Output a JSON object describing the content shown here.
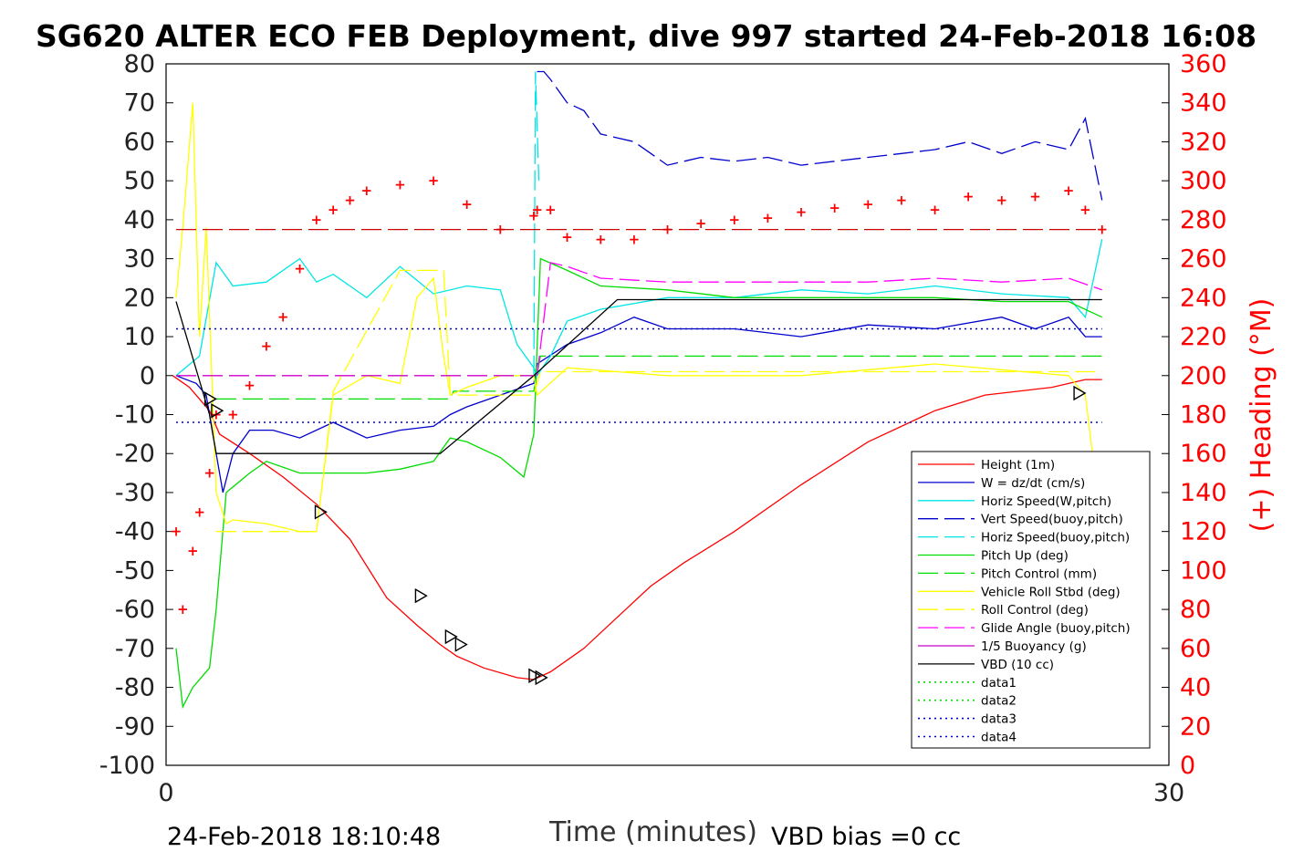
{
  "chart_data": {
    "type": "line",
    "title": "SG620 ALTER ECO FEB Deployment, dive 997 started 24-Feb-2018 16:08",
    "xlabel": "Time (minutes)",
    "ylabel_right": "(+) Heading (°M)",
    "xlim": [
      0,
      30
    ],
    "ylim": [
      -100,
      80
    ],
    "ylim_right": [
      0,
      360
    ],
    "x_ticks": [
      "0",
      "30"
    ],
    "y_ticks": [
      "80",
      "70",
      "60",
      "50",
      "40",
      "30",
      "20",
      "10",
      "0",
      "-10",
      "-20",
      "-30",
      "-40",
      "-50",
      "-60",
      "-70",
      "-80",
      "-90",
      "-100"
    ],
    "y_ticks_right": [
      "360",
      "340",
      "320",
      "300",
      "280",
      "260",
      "240",
      "220",
      "200",
      "180",
      "160",
      "140",
      "120",
      "100",
      "80",
      "60",
      "40",
      "20",
      "0"
    ],
    "footer_left": "24-Feb-2018 18:10:48",
    "footer_right": "VBD bias =0 cc",
    "colors": {
      "heading": "#ff0000",
      "right_axis": "#ff0000"
    },
    "legend": [
      {
        "label": "Height (1m)",
        "color": "#ff0000",
        "style": "solid"
      },
      {
        "label": "W = dz/dt (cm/s)",
        "color": "#0000cc",
        "style": "solid"
      },
      {
        "label": "Horiz Speed(W,pitch)",
        "color": "#00e5e5",
        "style": "solid"
      },
      {
        "label": "Vert Speed(buoy,pitch)",
        "color": "#0000cc",
        "style": "dashed"
      },
      {
        "label": "Horiz Speed(buoy,pitch)",
        "color": "#00e5e5",
        "style": "dashed"
      },
      {
        "label": "Pitch Up (deg)",
        "color": "#00dd00",
        "style": "solid"
      },
      {
        "label": "Pitch Control (mm)",
        "color": "#00dd00",
        "style": "dashed"
      },
      {
        "label": "Vehicle Roll Stbd (deg)",
        "color": "#ffff00",
        "style": "solid"
      },
      {
        "label": "Roll Control (deg)",
        "color": "#ffff00",
        "style": "dashed"
      },
      {
        "label": "Glide Angle (buoy,pitch)",
        "color": "#ff00ff",
        "style": "dashed"
      },
      {
        "label": "1/5 Buoyancy (g)",
        "color": "#cc00cc",
        "style": "solid"
      },
      {
        "label": "VBD (10 cc)",
        "color": "#000000",
        "style": "solid"
      },
      {
        "label": "data1",
        "color": "#00dd00",
        "style": "dotted"
      },
      {
        "label": "data2",
        "color": "#00dd00",
        "style": "dotted"
      },
      {
        "label": "data3",
        "color": "#0000cc",
        "style": "dotted"
      },
      {
        "label": "data4",
        "color": "#0000cc",
        "style": "dotted"
      }
    ],
    "series": [
      {
        "name": "Height (1m)",
        "axis": "left",
        "color": "#ff0000",
        "style": "solid",
        "x": [
          0.2,
          0.7,
          1.0,
          1.3,
          1.6,
          2.5,
          3.5,
          4.5,
          5.5,
          6.6,
          7.5,
          8.2,
          8.7,
          9.5,
          10.5,
          11.0,
          11.5,
          12.5,
          13.5,
          14.5,
          15.5,
          17.0,
          19.0,
          21.0,
          23.0,
          24.5,
          25.5,
          26.5,
          27.5,
          28.0
        ],
        "y": [
          0,
          -3,
          -6,
          -9,
          -15,
          -20,
          -26,
          -33,
          -42,
          -57,
          -64,
          -69,
          -72,
          -75,
          -77.5,
          -78,
          -76,
          -70,
          -62,
          -54,
          -48,
          -40,
          -28,
          -17,
          -9,
          -5,
          -4,
          -3,
          -1,
          -1
        ]
      },
      {
        "name": "W = dz/dt (cm/s)",
        "axis": "left",
        "color": "#0000cc",
        "style": "solid",
        "x": [
          0.3,
          0.9,
          1.2,
          1.5,
          1.7,
          2.0,
          2.5,
          3.2,
          4.0,
          5.0,
          6.0,
          7.0,
          8.0,
          8.5,
          9.0,
          10.0,
          11.0,
          11.1,
          12.0,
          13.0,
          14.0,
          15.0,
          17.0,
          19.0,
          21.0,
          23.0,
          25.0,
          26.0,
          27.0,
          27.5,
          28.0
        ],
        "y": [
          0,
          -2,
          -5,
          -20,
          -30,
          -20,
          -14,
          -14,
          -16,
          -12,
          -16,
          -14,
          -13,
          -10,
          -8,
          -5,
          -2,
          3,
          8,
          11,
          15,
          12,
          12,
          10,
          13,
          12,
          15,
          12,
          15,
          10,
          10
        ]
      },
      {
        "name": "Horiz Speed(W,pitch)",
        "axis": "left",
        "color": "#00e5e5",
        "style": "solid",
        "x": [
          0.3,
          1.0,
          1.5,
          2.0,
          3.0,
          4.0,
          4.5,
          5.0,
          6.0,
          7.0,
          8.0,
          9.0,
          10.0,
          10.5,
          11.0,
          11.1,
          11.5,
          12.0,
          13.0,
          15.0,
          17.0,
          19.0,
          21.0,
          23.0,
          25.0,
          27.0,
          27.5,
          28.0
        ],
        "y": [
          0,
          5,
          29,
          23,
          24,
          30,
          24,
          26,
          20,
          28,
          21,
          23,
          22,
          8,
          2,
          0,
          5,
          14,
          17,
          20,
          20,
          22,
          21,
          23,
          21,
          20,
          15,
          35
        ]
      },
      {
        "name": "Vert Speed(buoy,pitch)",
        "axis": "left",
        "color": "#0000cc",
        "style": "dashed",
        "x": [
          11.1,
          11.3,
          11.5,
          12.0,
          12.5,
          13.0,
          14.0,
          15.0,
          16.0,
          17.0,
          18.0,
          19.0,
          20.0,
          21.0,
          22.0,
          23.0,
          24.0,
          25.0,
          26.0,
          27.0,
          27.5,
          28.0
        ],
        "y": [
          78,
          78,
          76,
          70,
          68,
          62,
          60,
          54,
          56,
          55,
          56,
          54,
          55,
          56,
          57,
          58,
          60,
          57,
          60,
          58,
          66,
          45
        ]
      },
      {
        "name": "Horiz Speed(buoy,pitch)",
        "axis": "left",
        "color": "#00e5e5",
        "style": "dashed",
        "x": [
          11.0,
          11.05,
          11.15
        ],
        "y": [
          0,
          78,
          50
        ]
      },
      {
        "name": "Pitch Up (deg)",
        "axis": "left",
        "color": "#00dd00",
        "style": "solid",
        "x": [
          0.3,
          0.5,
          0.8,
          1.3,
          1.5,
          1.8,
          2.5,
          3.0,
          4.0,
          5.0,
          6.0,
          7.0,
          8.0,
          8.5,
          9.0,
          10.0,
          10.7,
          11.0,
          11.2,
          12.0,
          13.0,
          15.0,
          17.0,
          19.0,
          21.0,
          23.0,
          25.0,
          27.0,
          28.0
        ],
        "y": [
          -70,
          -85,
          -80,
          -75,
          -60,
          -30,
          -25,
          -22,
          -25,
          -25,
          -25,
          -24,
          -22,
          -16,
          -17,
          -21,
          -26,
          -15,
          30,
          27,
          23,
          22,
          20,
          20,
          20,
          20,
          19,
          19,
          15
        ]
      },
      {
        "name": "Pitch Control (mm)",
        "axis": "left",
        "color": "#00dd00",
        "style": "dashed",
        "x": [
          1.5,
          8.5,
          8.6,
          11.0,
          11.2,
          28.0
        ],
        "y": [
          -6,
          -6,
          -4,
          -4,
          5,
          5
        ]
      },
      {
        "name": "Vehicle Roll Stbd (deg)",
        "axis": "left",
        "color": "#ffff00",
        "style": "solid",
        "x": [
          0.3,
          0.5,
          0.8,
          1.0,
          1.2,
          1.5,
          1.8,
          2.0,
          3.0,
          4.0,
          4.5,
          5.0,
          6.0,
          7.0,
          7.5,
          8.0,
          8.3,
          8.5,
          9.0,
          10.0,
          11.0,
          11.1,
          12.0,
          15.0,
          19.0,
          23.0,
          27.0,
          27.5,
          28.0
        ],
        "y": [
          20,
          38,
          70,
          10,
          38,
          -30,
          -38,
          -37,
          -38,
          -40,
          -40,
          -5,
          0,
          -2,
          20,
          25,
          5,
          -5,
          -3,
          0,
          0,
          -5,
          2,
          0,
          0,
          3,
          0,
          -5,
          -40
        ]
      },
      {
        "name": "Roll Control (deg)",
        "axis": "left",
        "color": "#ffff00",
        "style": "dashed",
        "x": [
          1.5,
          4.5,
          5.0,
          7.0,
          8.3,
          8.5,
          11.0,
          11.2,
          28.0
        ],
        "y": [
          -40,
          -40,
          -4,
          27,
          27,
          -5,
          -5,
          1,
          1
        ]
      },
      {
        "name": "Glide Angle (buoy,pitch)",
        "axis": "left",
        "color": "#ff00ff",
        "style": "dashed",
        "x": [
          11.1,
          11.5,
          12.0,
          13.0,
          15.0,
          17.0,
          19.0,
          21.0,
          23.0,
          25.0,
          27.0,
          28.0
        ],
        "y": [
          0,
          29,
          28,
          25,
          24,
          24,
          24,
          24,
          25,
          24,
          25,
          22
        ]
      },
      {
        "name": "VBD (10 cc)",
        "axis": "left",
        "color": "#000000",
        "style": "solid",
        "x": [
          0.3,
          1.3,
          1.5,
          8.2,
          11.0,
          13.5,
          28.0
        ],
        "y": [
          19,
          -10,
          -20,
          -20,
          0,
          19.5,
          19.5
        ]
      },
      {
        "name": "Heading",
        "axis": "right",
        "color": "#ff0000",
        "style": "marker",
        "x": [
          0.3,
          0.5,
          0.8,
          1.0,
          1.3,
          1.5,
          2.0,
          2.5,
          3.0,
          3.5,
          4.0,
          4.5,
          5.0,
          5.5,
          6.0,
          7.0,
          8.0,
          9.0,
          10.0,
          11.0,
          11.1,
          11.5,
          12.0,
          13.0,
          14.0,
          15.0,
          16.0,
          17.0,
          18.0,
          19.0,
          20.0,
          21.0,
          22.0,
          23.0,
          24.0,
          25.0,
          26.0,
          27.0,
          27.5,
          28.0
        ],
        "y": [
          120,
          80,
          110,
          130,
          150,
          180,
          180,
          195,
          215,
          230,
          255,
          280,
          285,
          290,
          295,
          298,
          300,
          288,
          275,
          282,
          285,
          285,
          271,
          270,
          270,
          275,
          278,
          280,
          281,
          284,
          286,
          288,
          290,
          285,
          292,
          290,
          292,
          295,
          285,
          275
        ]
      },
      {
        "name": "Reference heading",
        "axis": "right",
        "color": "#cc0000",
        "style": "dashed",
        "x": [
          0.3,
          28.0
        ],
        "y": [
          275,
          275
        ]
      },
      {
        "name": "data3",
        "axis": "left",
        "color": "#0000cc",
        "style": "dotted",
        "x": [
          0.3,
          28.0
        ],
        "y": [
          12,
          12
        ]
      },
      {
        "name": "data4",
        "axis": "left",
        "color": "#0000cc",
        "style": "dotted",
        "x": [
          0.3,
          28.0
        ],
        "y": [
          -12,
          -12
        ]
      },
      {
        "name": "1/5 Buoyancy (g)",
        "axis": "left",
        "color": "#cc00cc",
        "style": "dashed",
        "x": [
          0.3,
          11.0
        ],
        "y": [
          0,
          0
        ]
      }
    ],
    "markers": [
      {
        "x": 1.3,
        "y": -6
      },
      {
        "x": 1.5,
        "y": -9
      },
      {
        "x": 4.6,
        "y": -35
      },
      {
        "x": 7.6,
        "y": -56.5
      },
      {
        "x": 8.5,
        "y": -67
      },
      {
        "x": 8.8,
        "y": -69
      },
      {
        "x": 11.0,
        "y": -77
      },
      {
        "x": 11.2,
        "y": -77.5
      },
      {
        "x": 27.3,
        "y": -4.5
      }
    ]
  }
}
